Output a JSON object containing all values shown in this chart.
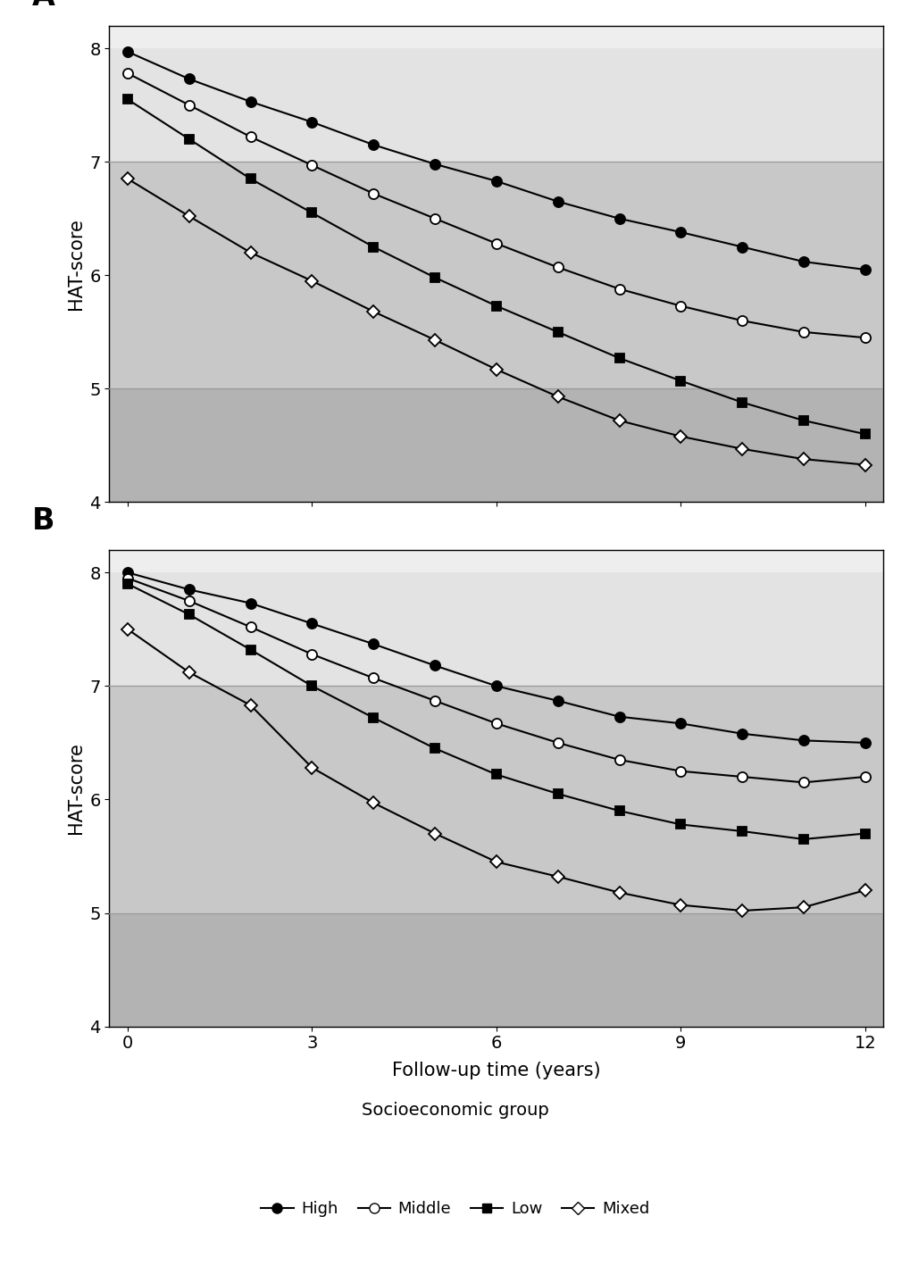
{
  "panel_A": {
    "x": [
      0,
      1,
      2,
      3,
      4,
      5,
      6,
      7,
      8,
      9,
      10,
      11,
      12
    ],
    "High": [
      7.97,
      7.73,
      7.53,
      7.35,
      7.15,
      6.98,
      6.83,
      6.65,
      6.5,
      6.38,
      6.25,
      6.12,
      6.05
    ],
    "Middle": [
      7.78,
      7.5,
      7.22,
      6.97,
      6.72,
      6.5,
      6.28,
      6.07,
      5.88,
      5.73,
      5.6,
      5.5,
      5.45
    ],
    "Low": [
      7.55,
      7.2,
      6.85,
      6.55,
      6.25,
      5.98,
      5.73,
      5.5,
      5.27,
      5.07,
      4.88,
      4.72,
      4.6
    ],
    "Mixed": [
      6.85,
      6.52,
      6.2,
      5.95,
      5.68,
      5.43,
      5.17,
      4.93,
      4.72,
      4.58,
      4.47,
      4.38,
      4.33
    ]
  },
  "panel_B": {
    "x": [
      0,
      1,
      2,
      3,
      4,
      5,
      6,
      7,
      8,
      9,
      10,
      11,
      12
    ],
    "High": [
      8.0,
      7.85,
      7.73,
      7.55,
      7.37,
      7.18,
      7.0,
      6.87,
      6.73,
      6.67,
      6.58,
      6.52,
      6.5
    ],
    "Middle": [
      7.95,
      7.75,
      7.52,
      7.28,
      7.07,
      6.87,
      6.67,
      6.5,
      6.35,
      6.25,
      6.2,
      6.15,
      6.2
    ],
    "Low": [
      7.9,
      7.63,
      7.32,
      7.0,
      6.72,
      6.45,
      6.22,
      6.05,
      5.9,
      5.78,
      5.72,
      5.65,
      5.7
    ],
    "Mixed": [
      7.5,
      7.12,
      6.83,
      6.28,
      5.97,
      5.7,
      5.45,
      5.32,
      5.18,
      5.07,
      5.02,
      5.05,
      5.2
    ]
  },
  "zone_colors": [
    "#b3b3b3",
    "#c8c8c8",
    "#e3e3e3"
  ],
  "separator_color": "#999999",
  "line_color": "#000000",
  "marker_facecolors": {
    "High": "#000000",
    "Middle": "#ffffff",
    "Low": "#000000",
    "Mixed": "#ffffff"
  },
  "markers": {
    "High": "o",
    "Middle": "o",
    "Low": "s",
    "Mixed": "D"
  },
  "ylim": [
    4.0,
    8.2
  ],
  "xlim": [
    -0.3,
    12.3
  ],
  "yticks": [
    4,
    5,
    6,
    7,
    8
  ],
  "xticks": [
    0,
    3,
    6,
    9,
    12
  ],
  "xlabel": "Follow-up time (years)",
  "ylabel": "HAT-score",
  "legend_title": "Socioeconomic group",
  "legend_entries": [
    "High",
    "Middle",
    "Low",
    "Mixed"
  ],
  "panel_labels": [
    "A",
    "B"
  ]
}
